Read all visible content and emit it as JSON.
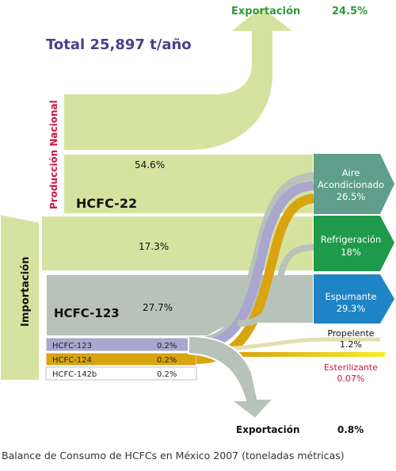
{
  "colors": {
    "green_flow": "#d6e3a0",
    "green_flow_edge": "#ffffff",
    "import_flow": "#b7c2b8",
    "hcfc123_small": "#a9a6cf",
    "hcfc124": "#d9a40f",
    "hcfc142b": "#ffffff",
    "aire": "#5f9e8a",
    "refrigeracion": "#1f9a4b",
    "espumante": "#1f84c6",
    "propelente": "#e8e6b8",
    "esterilizante": "#e8d21a",
    "export_green_text": "#2e9a3a",
    "title_purple": "#4b3f8c",
    "produccion_red": "#d0143c",
    "esterilizante_red": "#d0143c",
    "dark_text": "#111111"
  },
  "header": {
    "export_top_label": "Exportación",
    "export_top_pct": "24.5%",
    "total": "Total 25,897 t/año"
  },
  "sources": {
    "produccion_label": "Producción Nacional",
    "importacion_label": "Importación"
  },
  "flows": {
    "hcfc22_label": "HCFC-22",
    "hcfc22_pct": "54.6%",
    "mid_pct": "17.3%",
    "hcfc123_label": "HCFC-123",
    "hcfc123_pct": "27.7%",
    "small": [
      {
        "label": "HCFC-123",
        "pct": "0.2%"
      },
      {
        "label": "HCFC-124",
        "pct": "0.2%"
      },
      {
        "label": "HCFC-142b",
        "pct": "0.2%"
      }
    ]
  },
  "destinations": {
    "aire_1": "Aire",
    "aire_2": "Acondicionado",
    "aire_pct": "26.5%",
    "refri": "Refrigeración",
    "refri_pct": "18%",
    "espu": "Espumante",
    "espu_pct": "29.3%",
    "prop": "Propelente",
    "prop_pct": "1.2%",
    "este": "Esterilizante",
    "este_pct": "0.07%",
    "export_bottom_label": "Exportación",
    "export_bottom_pct": "0.8%"
  },
  "caption": "Balance de Consumo de HCFCs en México 2007 (toneladas métricas)"
}
